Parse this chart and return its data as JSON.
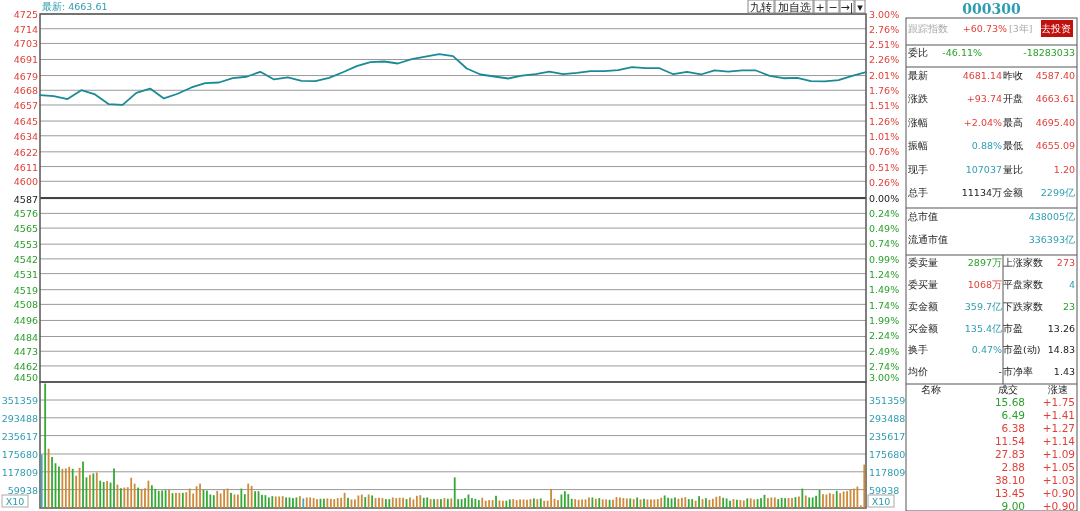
{
  "chart_data": [
    {
      "type": "line",
      "title": "最新: 4663.61",
      "categories": [
        null,
        null,
        null,
        null,
        null,
        null,
        null,
        null,
        null,
        null,
        null,
        null,
        null,
        null,
        null,
        null,
        null,
        null,
        null,
        null,
        null,
        null,
        null,
        null,
        null,
        null,
        null,
        null,
        null,
        null,
        null,
        null,
        null,
        null,
        null,
        null,
        null,
        null,
        null,
        null,
        null,
        null,
        null,
        null,
        null,
        null,
        null,
        null,
        null,
        null,
        null,
        null,
        null,
        null,
        null,
        null,
        null,
        null,
        null,
        null,
        null
      ],
      "series": [
        {
          "color": "#1a8a96",
          "values": [
            4664.4,
            4663.6,
            4661.4,
            4668.1,
            4664.9,
            4657.6,
            4657.1,
            4666.1,
            4669.3,
            4661.9,
            4665.4,
            4670.1,
            4673.3,
            4673.8,
            4677.1,
            4678.1,
            4681.8,
            4676.1,
            4677.6,
            4675.1,
            4674.8,
            4677.3,
            4681.5,
            4686.0,
            4689.0,
            4689.5,
            4688.0,
            4691.2,
            4693.2,
            4695.0,
            4693.5,
            4684.3,
            4679.8,
            4678.3,
            4676.8,
            4679.0,
            4680.0,
            4682.0,
            4680.0,
            4681.0,
            4682.3,
            4682.3,
            4683.0,
            4685.3,
            4684.5,
            4684.5,
            4680.0,
            4681.8,
            4679.8,
            4682.8,
            4682.0,
            4682.8,
            4682.8,
            4678.8,
            4677.0,
            4677.3,
            4674.8,
            4674.6,
            4675.6,
            4678.8,
            4681.5
          ]
        }
      ],
      "ylim": [
        4450,
        4725
      ],
      "yticks": [
        4725,
        4714,
        4703,
        4691,
        4679,
        4668,
        4657,
        4645,
        4634,
        4622,
        4611,
        4600,
        4587,
        4576,
        4565,
        4553,
        4542,
        4531,
        4519,
        4508,
        4496,
        4484,
        4473,
        4462,
        4450
      ],
      "y2lim": [
        -3,
        3
      ],
      "y2ticks": [
        {
          "value": 3,
          "label": "3.00%"
        },
        {
          "value": 2.76,
          "label": "2.76%"
        },
        {
          "value": 2.51,
          "label": "2.51%"
        },
        {
          "value": 2.26,
          "label": "2.26%"
        },
        {
          "value": 2.01,
          "label": "2.01%"
        },
        {
          "value": 1.76,
          "label": "1.76%"
        },
        {
          "value": 1.51,
          "label": "1.51%"
        },
        {
          "value": 1.26,
          "label": "1.26%"
        },
        {
          "value": 1.01,
          "label": "1.01%"
        },
        {
          "value": 0.76,
          "label": "0.76%"
        },
        {
          "value": 0.51,
          "label": "0.51%"
        },
        {
          "value": 0.26,
          "label": "0.26%"
        },
        {
          "value": 0,
          "label": "0.00%"
        },
        {
          "value": -0.24,
          "label": "0.24%"
        },
        {
          "value": -0.49,
          "label": "0.49%"
        },
        {
          "value": -0.74,
          "label": "0.74%"
        },
        {
          "value": -0.99,
          "label": "0.99%"
        },
        {
          "value": -1.24,
          "label": "1.24%"
        },
        {
          "value": -1.49,
          "label": "1.49%"
        },
        {
          "value": -1.74,
          "label": "1.74%"
        },
        {
          "value": -1.99,
          "label": "1.99%"
        },
        {
          "value": -2.24,
          "label": "2.24%"
        },
        {
          "value": -2.49,
          "label": "2.49%"
        },
        {
          "value": -2.74,
          "label": "2.74%"
        },
        {
          "value": -3,
          "label": "3.00%"
        }
      ],
      "grid": "y",
      "ref_lines": [
        {
          "axis": "y2",
          "value": 0,
          "color": "#444444"
        }
      ],
      "annotations": [
        "九转",
        "加自选",
        "+",
        "−",
        "→|",
        "▾"
      ]
    },
    {
      "type": "bar",
      "categories": [
        null,
        null,
        null,
        null,
        null,
        null,
        null,
        null,
        null,
        null,
        null,
        null,
        null,
        null,
        null,
        null,
        null,
        null,
        null,
        null,
        null,
        null,
        null,
        null,
        null,
        null,
        null,
        null,
        null,
        null,
        null,
        null,
        null,
        null,
        null,
        null,
        null,
        null,
        null,
        null,
        null,
        null,
        null,
        null,
        null,
        null,
        null,
        null,
        null,
        null,
        null,
        null,
        null,
        null,
        null,
        null,
        null,
        null,
        null,
        null,
        null,
        null,
        null,
        null,
        null,
        null,
        null,
        null,
        null,
        null,
        null,
        null,
        null,
        null,
        null,
        null,
        null,
        null,
        null,
        null,
        null,
        null,
        null,
        null,
        null,
        null,
        null,
        null,
        null,
        null,
        null,
        null,
        null,
        null,
        null,
        null,
        null,
        null,
        null,
        null,
        null,
        null,
        null,
        null,
        null,
        null,
        null,
        null,
        null,
        null,
        null,
        null,
        null,
        null,
        null,
        null,
        null,
        null,
        null,
        null,
        null,
        null,
        null,
        null,
        null,
        null,
        null,
        null,
        null,
        null,
        null,
        null,
        null,
        null,
        null,
        null,
        null,
        null,
        null,
        null,
        null,
        null,
        null,
        null,
        null,
        null,
        null,
        null,
        null,
        null,
        null,
        null,
        null,
        null,
        null,
        null,
        null,
        null,
        null,
        null,
        null,
        null,
        null,
        null,
        null,
        null,
        null,
        null,
        null,
        null,
        null,
        null,
        null,
        null,
        null,
        null,
        null,
        null,
        null,
        null,
        null,
        null,
        null,
        null,
        null,
        null,
        null,
        null,
        null,
        null,
        null,
        null,
        null,
        null,
        null,
        null,
        null,
        null,
        null,
        null,
        null,
        null,
        null,
        null,
        null,
        null,
        null,
        null,
        null,
        null,
        null,
        null,
        null,
        null,
        null,
        null,
        null,
        null,
        null,
        null,
        null,
        null,
        null,
        null,
        null,
        null,
        null,
        null,
        null,
        null,
        null,
        null,
        null,
        null,
        null,
        null,
        null,
        null,
        null,
        null
      ],
      "values": [
        173600,
        405000,
        192900,
        166100,
        145700,
        135000,
        127500,
        128600,
        134000,
        127500,
        105000,
        130700,
        151100,
        99700,
        108200,
        112500,
        115700,
        89000,
        84700,
        87900,
        82500,
        128600,
        76100,
        64300,
        66400,
        67500,
        98600,
        79300,
        66400,
        62200,
        64300,
        89000,
        73900,
        62200,
        55700,
        56800,
        57900,
        58900,
        48200,
        49300,
        49300,
        49300,
        51400,
        63200,
        47200,
        70700,
        79300,
        58900,
        56800,
        43900,
        41800,
        55700,
        47200,
        60000,
        63200,
        49300,
        43900,
        43900,
        63200,
        45000,
        79300,
        71800,
        54700,
        54700,
        42900,
        41800,
        34300,
        38600,
        37500,
        37500,
        38600,
        34300,
        34300,
        32200,
        34300,
        38600,
        31100,
        34300,
        34300,
        32200,
        28900,
        30000,
        30000,
        31100,
        30000,
        28900,
        32200,
        33200,
        49300,
        33200,
        27900,
        27900,
        40700,
        43900,
        35400,
        43900,
        40700,
        32200,
        33200,
        32200,
        28900,
        28900,
        34300,
        32200,
        33200,
        33200,
        28900,
        34300,
        27900,
        39700,
        41800,
        33200,
        34300,
        28900,
        28900,
        28900,
        28900,
        32200,
        30000,
        31100,
        99700,
        28900,
        28900,
        32200,
        43900,
        32200,
        30000,
        25700,
        33200,
        23600,
        25700,
        25700,
        39700,
        24600,
        23600,
        23600,
        27900,
        28900,
        25700,
        27900,
        27900,
        26800,
        28900,
        31100,
        28900,
        31100,
        23600,
        23600,
        62200,
        30000,
        25700,
        43900,
        54700,
        45000,
        30000,
        28900,
        26800,
        27900,
        27900,
        34300,
        34300,
        30000,
        32200,
        27900,
        27900,
        26800,
        26800,
        35400,
        34300,
        32200,
        31100,
        31100,
        28900,
        34300,
        27900,
        30000,
        27900,
        27900,
        27900,
        28900,
        33200,
        40700,
        33200,
        31100,
        34300,
        30000,
        33200,
        35400,
        28900,
        28900,
        23600,
        38600,
        28900,
        32200,
        26800,
        30000,
        36400,
        38600,
        33200,
        31100,
        23600,
        28900,
        26800,
        25700,
        24600,
        31100,
        31100,
        27900,
        28900,
        32200,
        42900,
        32200,
        34300,
        34300,
        28900,
        33200,
        32200,
        32200,
        32200,
        35400,
        37500,
        63200,
        40700,
        34300,
        34300,
        39700,
        58900,
        45000,
        43900,
        48200,
        45000,
        55700,
        48200,
        53600,
        54700,
        61100,
        63200,
        69700,
        8600,
        141500
      ],
      "colors": [
        "#4aa6b5",
        "#35a835",
        "#cc8a3a",
        "#35a835",
        "#35a835",
        "#35a835",
        "#cc8a3a",
        "#cc8a3a",
        "#cc8a3a",
        "#35a835",
        "#cc8a3a",
        "#cc8a3a",
        "#35a835",
        "#35a835",
        "#cc8a3a",
        "#35a835",
        "#cc8a3a",
        "#35a835",
        "#35a835",
        "#cc8a3a",
        "#35a835",
        "#35a835",
        "#cc8a3a",
        "#35a835",
        "#cc8a3a",
        "#cc8a3a",
        "#cc8a3a",
        "#cc8a3a",
        "#35a835",
        "#cc8a3a",
        "#cc8a3a",
        "#cc8a3a",
        "#35a835",
        "#35a835",
        "#35a835",
        "#35a835",
        "#35a835",
        "#cc8a3a",
        "#35a835",
        "#cc8a3a",
        "#cc8a3a",
        "#35a835",
        "#cc8a3a",
        "#cc8a3a",
        "#cc8a3a",
        "#cc8a3a",
        "#cc8a3a",
        "#35a835",
        "#35a835",
        "#35a835",
        "#35a835",
        "#cc8a3a",
        "#cc8a3a",
        "#cc8a3a",
        "#cc8a3a",
        "#35a835",
        "#cc8a3a",
        "#cc8a3a",
        "#35a835",
        "#35a835",
        "#cc8a3a",
        "#cc8a3a",
        "#35a835",
        "#35a835",
        "#35a835",
        "#35a835",
        "#35a835",
        "#35a835",
        "#cc8a3a",
        "#cc8a3a",
        "#cc8a3a",
        "#35a835",
        "#35a835",
        "#35a835",
        "#35a835",
        "#cc8a3a",
        "#4aa6b5",
        "#cc8a3a",
        "#cc8a3a",
        "#cc8a3a",
        "#cc8a3a",
        "#35a835",
        "#35a835",
        "#cc8a3a",
        "#cc8a3a",
        "#cc8a3a",
        "#cc8a3a",
        "#cc8a3a",
        "#cc8a3a",
        "#35a835",
        "#cc8a3a",
        "#cc8a3a",
        "#cc8a3a",
        "#cc8a3a",
        "#35a835",
        "#cc8a3a",
        "#35a835",
        "#cc8a3a",
        "#cc8a3a",
        "#cc8a3a",
        "#35a835",
        "#35a835",
        "#cc8a3a",
        "#cc8a3a",
        "#cc8a3a",
        "#cc8a3a",
        "#35a835",
        "#cc8a3a",
        "#cc8a3a",
        "#cc8a3a",
        "#cc8a3a",
        "#35a835",
        "#35a835",
        "#cc8a3a",
        "#35a835",
        "#cc8a3a",
        "#35a835",
        "#cc8a3a",
        "#35a835",
        "#cc8a3a",
        "#35a835",
        "#35a835",
        "#35a835",
        "#35a835",
        "#35a835",
        "#35a835",
        "#35a835",
        "#35a835",
        "#cc8a3a",
        "#cc8a3a",
        "#cc8a3a",
        "#cc8a3a",
        "#35a835",
        "#cc8a3a",
        "#cc8a3a",
        "#35a835",
        "#35a835",
        "#cc8a3a",
        "#cc8a3a",
        "#cc8a3a",
        "#cc8a3a",
        "#cc8a3a",
        "#cc8a3a",
        "#35a835",
        "#cc8a3a",
        "#35a835",
        "#cc8a3a",
        "#cc8a3a",
        "#cc8a3a",
        "#cc8a3a",
        "#cc8a3a",
        "#35a835",
        "#35a835",
        "#35a835",
        "#35a835",
        "#cc8a3a",
        "#cc8a3a",
        "#cc8a3a",
        "#cc8a3a",
        "#cc8a3a",
        "#35a835",
        "#cc8a3a",
        "#35a835",
        "#cc8a3a",
        "#cc8a3a",
        "#35a835",
        "#cc8a3a",
        "#cc8a3a",
        "#cc8a3a",
        "#cc8a3a",
        "#cc8a3a",
        "#35a835",
        "#cc8a3a",
        "#35a835",
        "#cc8a3a",
        "#35a835",
        "#cc8a3a",
        "#cc8a3a",
        "#cc8a3a",
        "#cc8a3a",
        "#cc8a3a",
        "#35a835",
        "#35a835",
        "#35a835",
        "#35a835",
        "#cc8a3a",
        "#cc8a3a",
        "#cc8a3a",
        "#35a835",
        "#35a835",
        "#cc8a3a",
        "#35a835",
        "#cc8a3a",
        "#35a835",
        "#cc8a3a",
        "#cc8a3a",
        "#cc8a3a",
        "#cc8a3a",
        "#35a835",
        "#35a835",
        "#35a835",
        "#cc8a3a",
        "#35a835",
        "#cc8a3a",
        "#cc8a3a",
        "#35a835",
        "#cc8a3a",
        "#cc8a3a",
        "#35a835",
        "#35a835",
        "#35a835",
        "#cc8a3a",
        "#cc8a3a",
        "#cc8a3a",
        "#35a835",
        "#35a835",
        "#35a835",
        "#cc8a3a",
        "#cc8a3a",
        "#35a835",
        "#cc8a3a",
        "#35a835",
        "#cc8a3a",
        "#35a835",
        "#35a835",
        "#35a835",
        "#35a835",
        "#cc8a3a",
        "#cc8a3a",
        "#cc8a3a",
        "#cc8a3a",
        "#35a835",
        "#cc8a3a",
        "#cc8a3a",
        "#cc8a3a",
        "#cc8a3a",
        "#cc8a3a",
        "#cc8a3a",
        "#cc8a3a",
        "#cc8a3a"
      ],
      "ylim": [
        0,
        410000
      ],
      "yticks": [
        351359,
        293488,
        235617,
        175680,
        117809,
        59938
      ],
      "y2lim": [
        0,
        410000
      ],
      "y2ticks": [
        351359,
        293488,
        235617,
        175680,
        117809,
        59938
      ],
      "ylabel": "X10",
      "y2label": "X10",
      "grid": "y"
    },
    {
      "type": "other",
      "title": "000300",
      "annotations": [
        "跟踪指数",
        "+60.73%",
        "[3年]",
        "去投资",
        "委比",
        "-46.11%",
        "-18283033",
        "最新",
        "4681.14",
        "昨收",
        "4587.40",
        "涨跌",
        "+93.74",
        "开盘",
        "4663.61",
        "涨幅",
        "+2.04%",
        "最高",
        "4695.40",
        "振幅",
        "0.88%",
        "最低",
        "4655.09",
        "现手",
        "107037",
        "量比",
        "1.20",
        "总手",
        "11134万",
        "金额",
        "2299亿",
        "总市值",
        "438005亿",
        "流通市值",
        "336393亿",
        "委卖量",
        "2897万",
        "上涨家数",
        "273",
        "委买量",
        "1068万",
        "平盘家数",
        "4",
        "卖金额",
        "359.7亿",
        "下跌家数",
        "23",
        "买金额",
        "135.4亿",
        "市盈",
        "13.26",
        "换手",
        "0.47%",
        "市盈(动)",
        "14.83",
        "均价",
        "-",
        "市净率",
        "1.43",
        "名称",
        "成交",
        "涨速",
        "15.68",
        "+1.75",
        "6.49",
        "+1.41",
        "6.38",
        "+1.27",
        "11.54",
        "+1.14",
        "27.83",
        "+1.09",
        "2.88",
        "+1.05",
        "38.10",
        "+1.03",
        "13.45",
        "+0.90",
        "9.00",
        "+0.90"
      ]
    }
  ]
}
